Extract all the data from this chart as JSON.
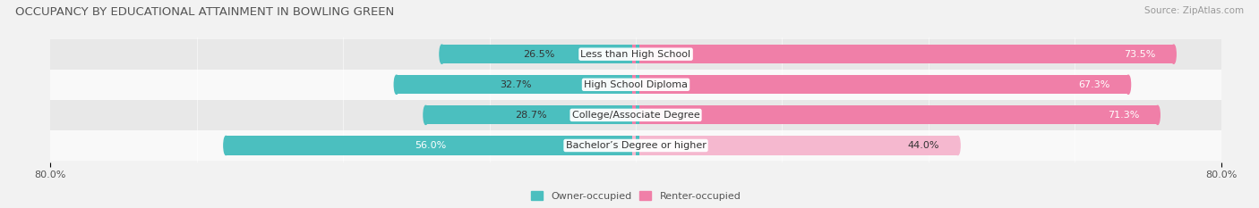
{
  "title": "OCCUPANCY BY EDUCATIONAL ATTAINMENT IN BOWLING GREEN",
  "source": "Source: ZipAtlas.com",
  "categories": [
    "Less than High School",
    "High School Diploma",
    "College/Associate Degree",
    "Bachelor’s Degree or higher"
  ],
  "owner_pct": [
    26.5,
    32.7,
    28.7,
    56.0
  ],
  "renter_pct": [
    73.5,
    67.3,
    71.3,
    44.0
  ],
  "owner_color": "#4BBFBF",
  "renter_color": "#F07FA8",
  "renter_color_light": "#F5B8CF",
  "bar_height": 0.62,
  "xlim_left": -80,
  "xlim_right": 80,
  "background_color": "#f2f2f2",
  "row_colors": [
    "#e8e8e8",
    "#f9f9f9"
  ],
  "title_fontsize": 9.5,
  "source_fontsize": 7.5,
  "label_fontsize": 8,
  "pct_fontsize": 8,
  "legend_fontsize": 8,
  "owner_pct_label_colors": [
    "#333333",
    "#333333",
    "#333333",
    "#ffffff"
  ],
  "renter_pct_label_colors": [
    "#ffffff",
    "#ffffff",
    "#ffffff",
    "#333333"
  ]
}
